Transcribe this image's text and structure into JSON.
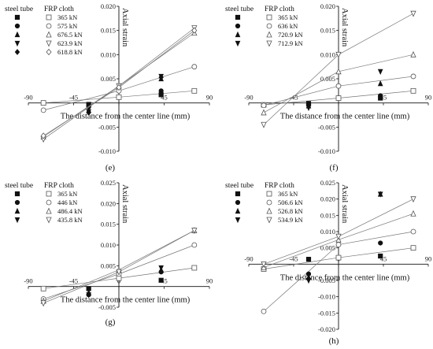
{
  "chart_data": [
    {
      "type": "scatter",
      "panel_label": "(e)",
      "xlabel": "The distance from the center line (mm)",
      "ylabel": "Axial strain",
      "xlim": [
        -90,
        90
      ],
      "ylim": [
        -0.01,
        0.02
      ],
      "xticks": [
        -90,
        -45,
        0,
        45,
        90
      ],
      "xtick_labels": [
        "-90",
        "-45",
        "0",
        "45",
        "90"
      ],
      "yticks": [
        -0.01,
        -0.005,
        0.005,
        0.01,
        0.015,
        0.02
      ],
      "ytick_labels": [
        "-0.010",
        "-0.005",
        "0.005",
        "0.010",
        "0.015",
        "0.020"
      ],
      "legend_headers": [
        "steel tube",
        "FRP cloth"
      ],
      "series": [
        {
          "name": "365 kN",
          "steel": [
            [
              -30,
              -0.0003
            ],
            [
              42,
              0.0017
            ]
          ],
          "frp": [
            [
              -75,
              0.0
            ],
            [
              0,
              0.0012
            ],
            [
              75,
              0.0025
            ]
          ]
        },
        {
          "name": "575 kN",
          "steel": [
            [
              -30,
              -0.0008
            ],
            [
              42,
              0.0025
            ]
          ],
          "frp": [
            [
              -75,
              -0.0015
            ],
            [
              0,
              0.0025
            ],
            [
              75,
              0.0075
            ]
          ]
        },
        {
          "name": "676.5 kN",
          "steel": [
            [
              -30,
              -0.0015
            ],
            [
              42,
              0.005
            ]
          ],
          "frp": [
            [
              -75,
              -0.007
            ],
            [
              0,
              0.0035
            ],
            [
              75,
              0.0145
            ]
          ]
        },
        {
          "name": "623.9 kN",
          "steel": [
            [
              -30,
              -0.0018
            ],
            [
              42,
              0.0055
            ]
          ],
          "frp": [
            [
              -75,
              -0.0075
            ],
            [
              0,
              0.0035
            ],
            [
              75,
              0.0155
            ]
          ]
        },
        {
          "name": "618.8 kN",
          "steel": [
            [
              -30,
              -0.002
            ],
            [
              42,
              0.0053
            ]
          ],
          "frp": [
            [
              -75,
              -0.0068
            ],
            [
              0,
              0.0032
            ],
            [
              75,
              0.015
            ]
          ]
        }
      ]
    },
    {
      "type": "scatter",
      "panel_label": "(f)",
      "xlabel": "The distance from the center line (mm)",
      "ylabel": "Axial strain",
      "xlim": [
        -90,
        90
      ],
      "ylim": [
        -0.01,
        0.02
      ],
      "xticks": [
        -90,
        -45,
        0,
        45,
        90
      ],
      "xtick_labels": [
        "-90",
        "-45",
        "0",
        "45",
        "90"
      ],
      "yticks": [
        -0.01,
        -0.005,
        0.005,
        0.01,
        0.015,
        0.02
      ],
      "ytick_labels": [
        "-0.010",
        "-0.005",
        "0.005",
        "0.010",
        "0.015",
        "0.020"
      ],
      "legend_headers": [
        "steel tube",
        "FRP cloth"
      ],
      "series": [
        {
          "name": "365 kN",
          "steel": [
            [
              -30,
              -0.0001
            ],
            [
              42,
              0.001
            ]
          ],
          "frp": [
            [
              -75,
              -0.0004
            ],
            [
              0,
              0.001
            ],
            [
              75,
              0.0025
            ]
          ]
        },
        {
          "name": "636 kN",
          "steel": [
            [
              -30,
              -0.0003
            ],
            [
              42,
              0.0015
            ]
          ],
          "frp": [
            [
              -75,
              -0.0005
            ],
            [
              0,
              0.0035
            ],
            [
              75,
              0.0055
            ]
          ]
        },
        {
          "name": "720.9 kN",
          "steel": [
            [
              -30,
              -0.0006
            ],
            [
              42,
              0.004
            ]
          ],
          "frp": [
            [
              -75,
              -0.002
            ],
            [
              0,
              0.0065
            ],
            [
              75,
              0.01
            ]
          ]
        },
        {
          "name": "712.9 kN",
          "steel": [
            [
              -30,
              -0.001
            ],
            [
              42,
              0.0065
            ]
          ],
          "frp": [
            [
              -75,
              -0.0045
            ],
            [
              0,
              0.01
            ],
            [
              75,
              0.0185
            ]
          ]
        }
      ]
    },
    {
      "type": "scatter",
      "panel_label": "(g)",
      "xlabel": "The distance from the center line (mm)",
      "ylabel": "Axial strain",
      "xlim": [
        -90,
        90
      ],
      "ylim": [
        -0.005,
        0.025
      ],
      "xticks": [
        -90,
        -45,
        0,
        45,
        90
      ],
      "xtick_labels": [
        "-90",
        "-45",
        "0",
        "45",
        "90"
      ],
      "yticks": [
        -0.005,
        0.005,
        0.01,
        0.015,
        0.02,
        0.025
      ],
      "ytick_labels": [
        "-0.005",
        "0.005",
        "0.010",
        "0.015",
        "0.020",
        "0.025"
      ],
      "legend_headers": [
        "steel tube",
        "FRP cloth"
      ],
      "series": [
        {
          "name": "365 kN",
          "steel": [
            [
              -30,
              -0.0005
            ],
            [
              42,
              0.0015
            ]
          ],
          "frp": [
            [
              -75,
              -0.0005
            ],
            [
              0,
              0.002
            ],
            [
              75,
              0.0045
            ]
          ]
        },
        {
          "name": "446 kN",
          "steel": [
            [
              -30,
              -0.002
            ],
            [
              42,
              0.0035
            ]
          ],
          "frp": [
            [
              -75,
              -0.003
            ],
            [
              0,
              0.003
            ],
            [
              75,
              0.01
            ]
          ]
        },
        {
          "name": "486.4 kN",
          "steel": [
            [
              -30,
              -0.0015
            ],
            [
              42,
              0.004
            ]
          ],
          "frp": [
            [
              -75,
              -0.0035
            ],
            [
              0,
              0.004
            ],
            [
              75,
              0.0135
            ]
          ]
        },
        {
          "name": "435.8 kN",
          "steel": [
            [
              -30,
              -0.002
            ],
            [
              42,
              0.0045
            ]
          ],
          "frp": [
            [
              -75,
              -0.004
            ],
            [
              0,
              0.0035
            ],
            [
              75,
              0.0135
            ]
          ]
        }
      ]
    },
    {
      "type": "scatter",
      "panel_label": "(h)",
      "xlabel": "The distance from the center line (mm)",
      "ylabel": "Axial strain",
      "xlim": [
        -90,
        90
      ],
      "ylim": [
        -0.02,
        0.025
      ],
      "xticks": [
        -90,
        -45,
        0,
        45,
        90
      ],
      "xtick_labels": [
        "-90",
        "-45",
        "0",
        "45",
        "90"
      ],
      "yticks": [
        -0.02,
        -0.015,
        -0.01,
        -0.005,
        0.005,
        0.01,
        0.015,
        0.02,
        0.025
      ],
      "ytick_labels": [
        "-0.020",
        "-0.015",
        "-0.010",
        "-0.005",
        "0.005",
        "0.010",
        "0.015",
        "0.020",
        "0.025"
      ],
      "legend_headers": [
        "steel tube",
        "FRP cloth"
      ],
      "series": [
        {
          "name": "365 kN",
          "steel": [
            [
              -30,
              0.0015
            ],
            [
              42,
              0.0025
            ]
          ],
          "frp": [
            [
              -75,
              -0.0015
            ],
            [
              0,
              0.002
            ],
            [
              75,
              0.005
            ]
          ]
        },
        {
          "name": "506.6 kN",
          "steel": [
            [
              -30,
              -0.003
            ],
            [
              42,
              0.0065
            ]
          ],
          "frp": [
            [
              -75,
              -0.0145
            ],
            [
              0,
              0.006
            ],
            [
              75,
              0.01
            ]
          ]
        },
        {
          "name": "526.8 kN",
          "steel": [
            [
              -30,
              -0.004
            ],
            [
              42,
              0.0215
            ]
          ],
          "frp": [
            [
              -75,
              -0.001
            ],
            [
              0,
              0.0075
            ],
            [
              75,
              0.0155
            ]
          ]
        },
        {
          "name": "534.9 kN",
          "steel": [
            [
              -30,
              -0.005
            ],
            [
              42,
              0.0215
            ]
          ],
          "frp": [
            [
              -75,
              0.0
            ],
            [
              0,
              0.0085
            ],
            [
              75,
              0.02
            ]
          ]
        }
      ]
    }
  ]
}
